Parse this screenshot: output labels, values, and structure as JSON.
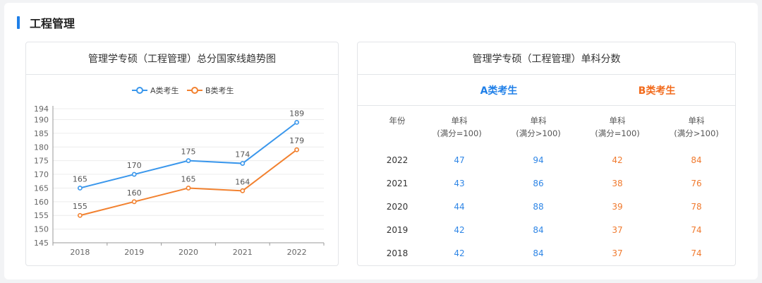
{
  "section": {
    "title": "工程管理"
  },
  "line_chart": {
    "title": "管理学专硕（工程管理）总分国家线趋势图"
  },
  "table": {
    "title": "管理学专硕（工程管理）单科分数",
    "groups": [
      {
        "label": "A类考生",
        "color": "#1f7fe8"
      },
      {
        "label": "B类考生",
        "color": "#f26a1b"
      }
    ],
    "columns": [
      {
        "line1": "年份",
        "line2": ""
      },
      {
        "line1": "单科",
        "line2": "(满分=100)"
      },
      {
        "line1": "单科",
        "line2": "(满分>100)"
      },
      {
        "line1": "单科",
        "line2": "(满分=100)"
      },
      {
        "line1": "单科",
        "line2": "(满分>100)"
      }
    ],
    "rows": [
      {
        "year": "2022",
        "a100": "47",
        "aover": "94",
        "b100": "42",
        "bover": "84"
      },
      {
        "year": "2021",
        "a100": "43",
        "aover": "86",
        "b100": "38",
        "bover": "76"
      },
      {
        "year": "2020",
        "a100": "44",
        "aover": "88",
        "b100": "39",
        "bover": "78"
      },
      {
        "year": "2019",
        "a100": "42",
        "aover": "84",
        "b100": "37",
        "bover": "74"
      },
      {
        "year": "2018",
        "a100": "42",
        "aover": "84",
        "b100": "37",
        "bover": "74"
      }
    ]
  },
  "chart_data": {
    "type": "line",
    "title": "管理学专硕（工程管理）总分国家线趋势图",
    "categories": [
      "2018",
      "2019",
      "2020",
      "2021",
      "2022"
    ],
    "series": [
      {
        "name": "A类考生",
        "values": [
          165,
          170,
          175,
          174,
          189
        ],
        "color": "#3a97ec"
      },
      {
        "name": "B类考生",
        "values": [
          155,
          160,
          165,
          164,
          179
        ],
        "color": "#f2812f"
      }
    ],
    "yticks": [
      145,
      150,
      155,
      160,
      165,
      170,
      175,
      180,
      185,
      190,
      194
    ],
    "ylim": [
      145,
      194
    ],
    "xlabel": "",
    "ylabel": "",
    "grid": true,
    "legend_position": "top-center"
  }
}
